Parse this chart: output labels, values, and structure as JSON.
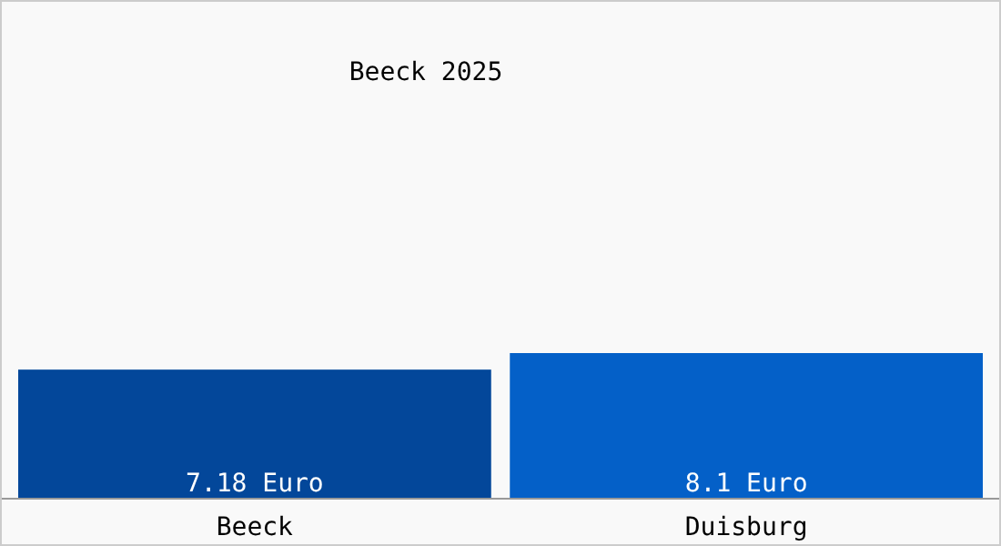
{
  "chart_data": {
    "type": "bar",
    "title": "Beeck 2025",
    "categories": [
      "Beeck",
      "Duisburg"
    ],
    "values": [
      7.18,
      8.1
    ],
    "colors": [
      "#03479a",
      "#0460c8"
    ],
    "value_labels": [
      "7.18 Euro",
      "8.1 Euro"
    ]
  }
}
